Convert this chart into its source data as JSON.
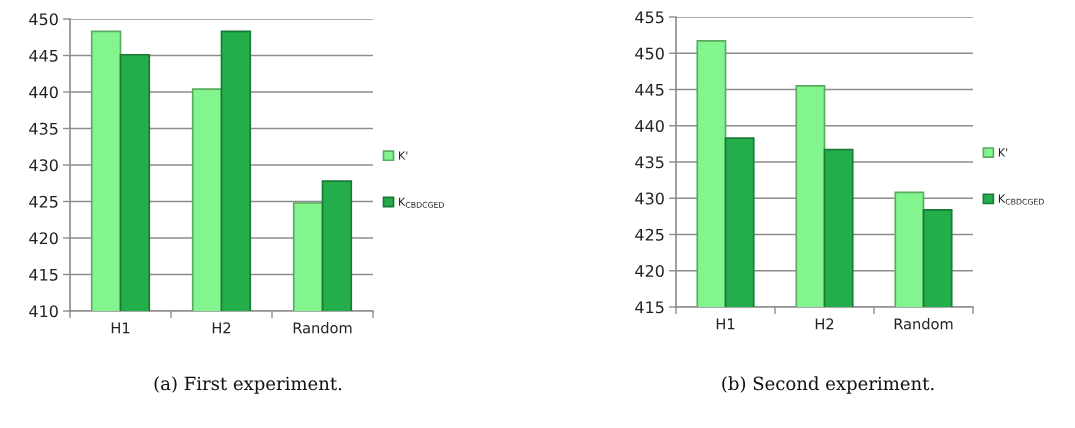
{
  "chart_data": [
    {
      "type": "bar",
      "title": "(a) First experiment.",
      "categories": [
        "H1",
        "H2",
        "Random"
      ],
      "series": [
        {
          "name": "K'",
          "color": "#82f58e",
          "values": [
            448.3,
            440.4,
            424.8
          ]
        },
        {
          "name": "K$_{CBDCGED}$",
          "color": "#23ae4b",
          "values": [
            445.1,
            448.3,
            427.8
          ]
        }
      ],
      "ylim": [
        410,
        450
      ],
      "yticks": [
        410,
        415,
        420,
        425,
        430,
        435,
        440,
        445,
        450
      ],
      "grid": "y",
      "legend": "right"
    },
    {
      "type": "bar",
      "title": "(b) Second experiment.",
      "categories": [
        "H1",
        "H2",
        "Random"
      ],
      "series": [
        {
          "name": "K'",
          "color": "#82f58e",
          "values": [
            451.7,
            445.5,
            430.8
          ]
        },
        {
          "name": "K$_{CBDCGED}$",
          "color": "#23ae4b",
          "values": [
            438.3,
            436.7,
            428.4
          ]
        }
      ],
      "ylim": [
        415,
        455
      ],
      "yticks": [
        415,
        420,
        425,
        430,
        435,
        440,
        445,
        450,
        455
      ],
      "grid": "y",
      "legend": "right"
    }
  ]
}
